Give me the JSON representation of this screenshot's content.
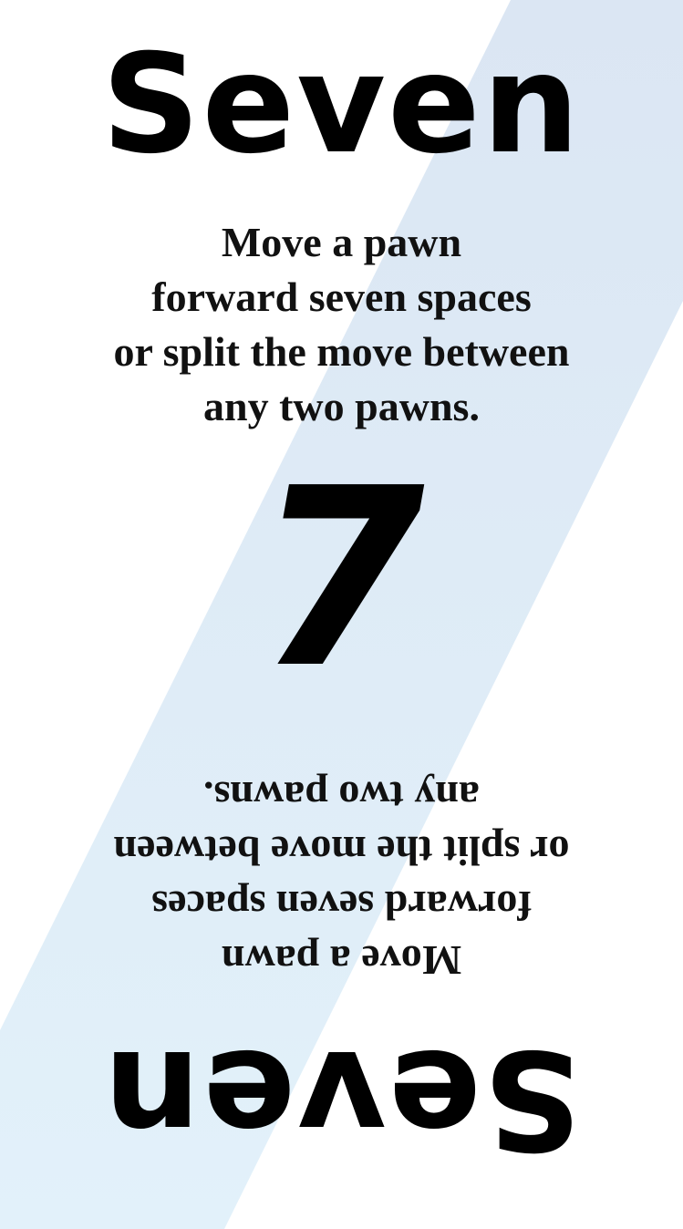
{
  "card": {
    "title": "Seven",
    "number": "7",
    "description_lines": [
      "Move a pawn",
      "forward seven spaces",
      "or split the move between",
      "any two pawns."
    ],
    "colors": {
      "background": "#ffffff",
      "stripe_top": "#dbe6f3",
      "stripe_bottom": "#e2f1fa",
      "text": "#000000"
    }
  }
}
